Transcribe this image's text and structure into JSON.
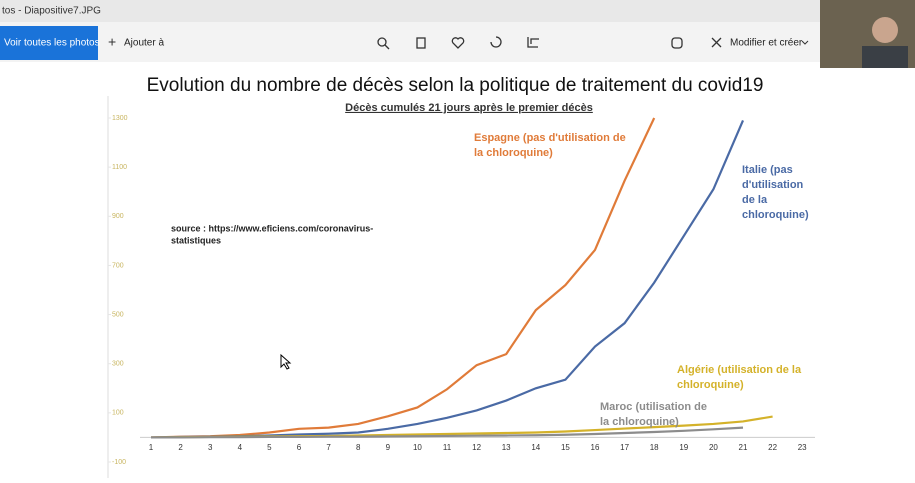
{
  "window": {
    "title": "tos - Diapositive7.JPG"
  },
  "toolbar": {
    "all_photos": "Voir toutes les photos",
    "add_to": "Ajouter à",
    "edit_create": "Modifier et créer"
  },
  "slide": {
    "title": "Evolution du nombre de décès selon la politique de traitement du covid19",
    "source": [
      "source : https://www.eficiens.com/coronavirus-",
      "statistiques"
    ]
  },
  "chart_data": {
    "type": "line",
    "title": "Décès cumulés 21 jours après le premier décès",
    "categories": [
      "1",
      "2",
      "3",
      "4",
      "5",
      "6",
      "7",
      "8",
      "9",
      "10",
      "11",
      "12",
      "13",
      "14",
      "15",
      "16",
      "17",
      "18",
      "19",
      "20",
      "21",
      "22",
      "23"
    ],
    "ylim": [
      -100,
      1300
    ],
    "yticks": [
      -100,
      100,
      300,
      500,
      700,
      900,
      1100,
      1300
    ],
    "series": [
      {
        "name": [
          "Espagne (pas d'utilisation de",
          "la chloroquine)"
        ],
        "color": "#e07b39",
        "values": [
          0,
          3,
          5,
          10,
          20,
          35,
          40,
          55,
          86,
          122,
          196,
          294,
          339,
          518,
          620,
          763,
          1045,
          1300,
          null,
          null,
          null,
          null,
          null
        ]
      },
      {
        "name": [
          "Italie (pas",
          "d'utilisation",
          "de la",
          "chloroquine)"
        ],
        "color": "#4a6aa5",
        "values": [
          0,
          2,
          3,
          5,
          8,
          12,
          15,
          20,
          35,
          55,
          80,
          110,
          150,
          200,
          235,
          370,
          465,
          630,
          820,
          1010,
          1290,
          null,
          null
        ]
      },
      {
        "name": [
          "Algérie (utilisation de la",
          "chloroquine)"
        ],
        "color": "#d4b22a",
        "values": [
          0,
          1,
          2,
          3,
          4,
          5,
          6,
          8,
          10,
          12,
          14,
          16,
          18,
          20,
          24,
          30,
          36,
          42,
          48,
          55,
          65,
          85,
          null
        ]
      },
      {
        "name": [
          "Maroc (utilisation de",
          "la chloroquine)"
        ],
        "color": "#8c8c8c",
        "values": [
          0,
          0,
          1,
          1,
          2,
          2,
          3,
          3,
          4,
          5,
          6,
          7,
          8,
          9,
          11,
          14,
          18,
          22,
          27,
          33,
          40,
          null,
          null
        ]
      }
    ]
  }
}
